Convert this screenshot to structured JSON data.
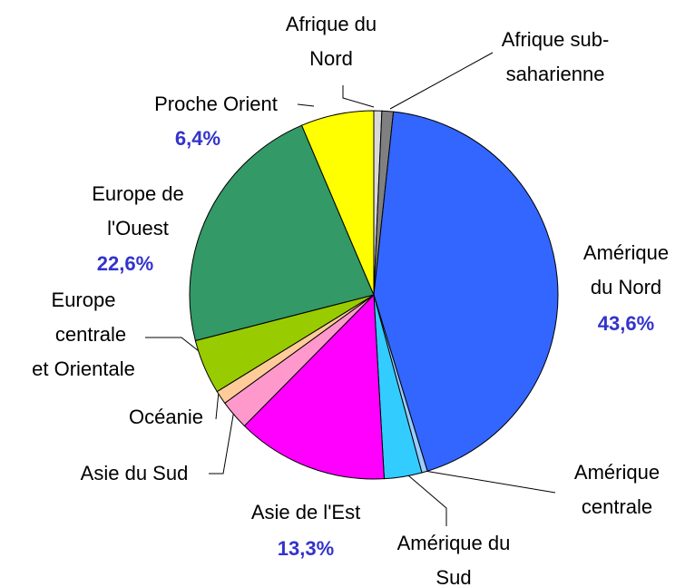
{
  "chart_data": {
    "type": "pie",
    "categories": [
      [
        "Afrique du",
        "Nord"
      ],
      [
        "Afrique sub-",
        "saharienne"
      ],
      [
        "Amérique",
        "du Nord"
      ],
      [
        "Amérique",
        "centrale"
      ],
      [
        "Amérique du",
        "Sud"
      ],
      [
        "Asie de l'Est"
      ],
      [
        "Asie du Sud"
      ],
      [
        "Océanie"
      ],
      [
        "Europe",
        "centrale",
        "et Orientale"
      ],
      [
        "Europe de",
        "l'Ouest"
      ],
      [
        "Proche Orient"
      ]
    ],
    "values": [
      0.7,
      1.0,
      43.6,
      0.5,
      3.3,
      13.3,
      2.6,
      1.2,
      4.8,
      22.6,
      6.4
    ],
    "value_labels": [
      null,
      null,
      "43,6%",
      null,
      null,
      "13,3%",
      null,
      null,
      null,
      "22,6%",
      "6,4%"
    ],
    "colors": [
      "#d9d9d9",
      "#808080",
      "#3366ff",
      "#99ccff",
      "#33ccff",
      "#ff00ff",
      "#ff99cc",
      "#ffcc99",
      "#99cc00",
      "#339966",
      "#ffff00"
    ]
  }
}
